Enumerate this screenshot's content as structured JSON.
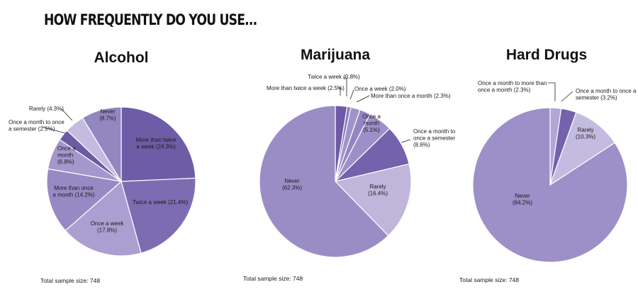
{
  "heading": "HOW FREQUENTLY DO YOU USE...",
  "chart_data": [
    {
      "type": "pie",
      "title": "Alcohol",
      "footnote": "Total sample size: 748",
      "slices": [
        {
          "lines": [
            "More than twice",
            "a week (24.3%)"
          ],
          "value": 24.3,
          "color": "#6f5ca6"
        },
        {
          "lines": [
            "Twice a week (21.4%)"
          ],
          "value": 21.4,
          "color": "#7e6cb2"
        },
        {
          "lines": [
            "Once a week",
            "(17.8%)"
          ],
          "value": 17.8,
          "color": "#ab9fd1"
        },
        {
          "lines": [
            "More than once",
            "a month (14.2%)"
          ],
          "value": 14.2,
          "color": "#978ac4"
        },
        {
          "lines": [
            "Once a",
            "month",
            "(6.8%)"
          ],
          "value": 6.8,
          "color": "#a497cc"
        },
        {
          "lines": [
            "Once a month to once",
            "a semester (2.5%)"
          ],
          "value": 2.5,
          "color": "#6c5aa3"
        },
        {
          "lines": [
            "Rarely (4.3%)"
          ],
          "value": 4.3,
          "color": "#c4bbe0"
        },
        {
          "lines": [
            "Never",
            "(8.7%)"
          ],
          "value": 8.7,
          "color": "#9387c1"
        }
      ]
    },
    {
      "type": "pie",
      "title": "Marijuana",
      "footnote": "Total sample size: 748",
      "slices": [
        {
          "lines": [
            "More than twice a week (2.5%)"
          ],
          "value": 2.5,
          "color": "#6d59a6"
        },
        {
          "lines": [
            "Twice a week (0.8%)"
          ],
          "value": 0.8,
          "color": "#8a7cbc"
        },
        {
          "lines": [
            "Once a week (2.0%)"
          ],
          "value": 2.0,
          "color": "#a093ca"
        },
        {
          "lines": [
            "More than once a month (2.3%)"
          ],
          "value": 2.3,
          "color": "#9385c2"
        },
        {
          "lines": [
            "Once a",
            "month",
            "(5.1%)"
          ],
          "value": 5.1,
          "color": "#9d90c8"
        },
        {
          "lines": [
            "Once a month to",
            "once a semester",
            "(8.6%)"
          ],
          "value": 8.6,
          "color": "#7462ac"
        },
        {
          "lines": [
            "Rarely",
            "(16.4%)"
          ],
          "value": 16.4,
          "color": "#c0b6dc"
        },
        {
          "lines": [
            "Never",
            "(62.3%)"
          ],
          "value": 62.3,
          "color": "#9a8dc6"
        }
      ]
    },
    {
      "type": "pie",
      "title": "Hard Drugs",
      "footnote": "Total sample size: 748",
      "slices": [
        {
          "lines": [
            "Once a month to more than",
            "once a month (2.3%)"
          ],
          "value": 2.3,
          "color": "#b1a6d6"
        },
        {
          "lines": [
            "Once a month to once a",
            "semester (3.2%)"
          ],
          "value": 3.2,
          "color": "#7462ac"
        },
        {
          "lines": [
            "Rarely",
            "(10.3%)"
          ],
          "value": 10.3,
          "color": "#c4bbe0"
        },
        {
          "lines": [
            "Never",
            "(84.2%)"
          ],
          "value": 84.2,
          "color": "#9d8fc7"
        }
      ]
    }
  ]
}
